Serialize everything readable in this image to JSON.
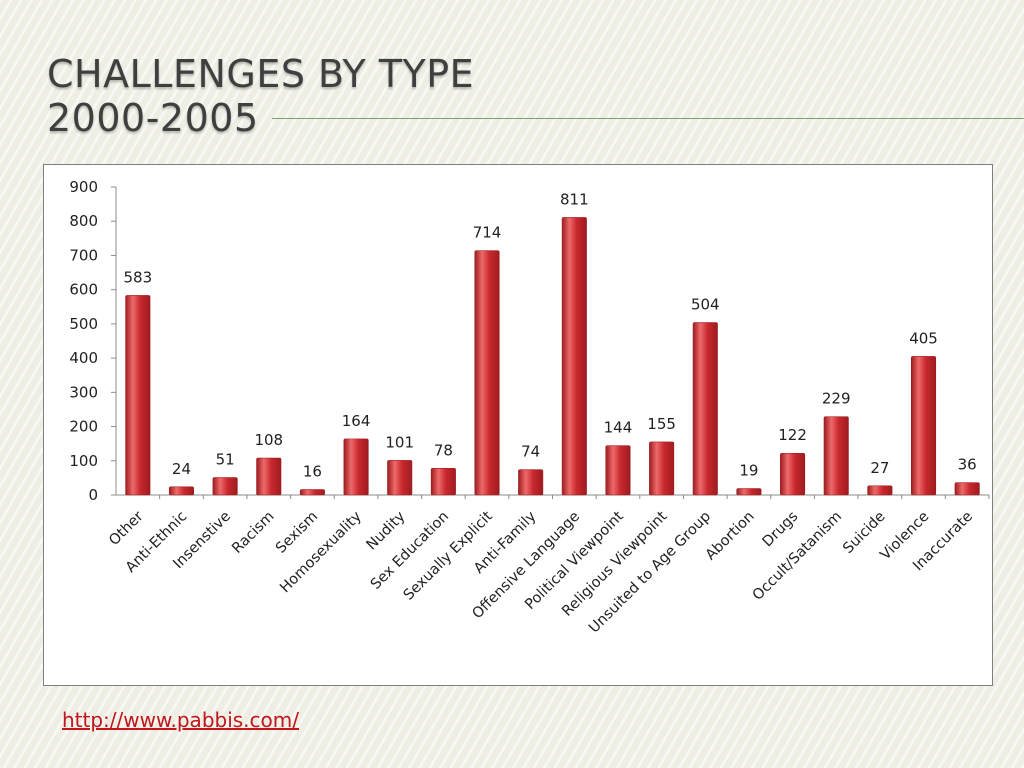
{
  "slide": {
    "title_line1": "CHALLENGES BY TYPE",
    "title_line2": "2000-2005",
    "source_link": "http://www.pabbis.com/"
  },
  "colors": {
    "bar": "#c8282d",
    "bar_light": "#ee6a6a",
    "bar_dark": "#9e1c20",
    "title": "#3f3f3f",
    "link": "#c0161c"
  },
  "chart_data": {
    "type": "bar",
    "categories": [
      "Other",
      "Anti-Ethnic",
      "Insenstive",
      "Racism",
      "Sexism",
      "Homosexuality",
      "Nudity",
      "Sex Education",
      "Sexually Explicit",
      "Anti-Family",
      "Offensive Language",
      "Political Viewpoint",
      "Religious Viewpoint",
      "Unsuited to Age Group",
      "Abortion",
      "Drugs",
      "Occult/Satanism",
      "Suicide",
      "Violence",
      "Inaccurate"
    ],
    "values": [
      583,
      24,
      51,
      108,
      16,
      164,
      101,
      78,
      714,
      74,
      811,
      144,
      155,
      504,
      19,
      122,
      229,
      27,
      405,
      36
    ],
    "yticks": [
      0,
      100,
      200,
      300,
      400,
      500,
      600,
      700,
      800,
      900
    ],
    "ylim": [
      0,
      900
    ],
    "grid": false,
    "legend": "none",
    "data_labels": true
  }
}
